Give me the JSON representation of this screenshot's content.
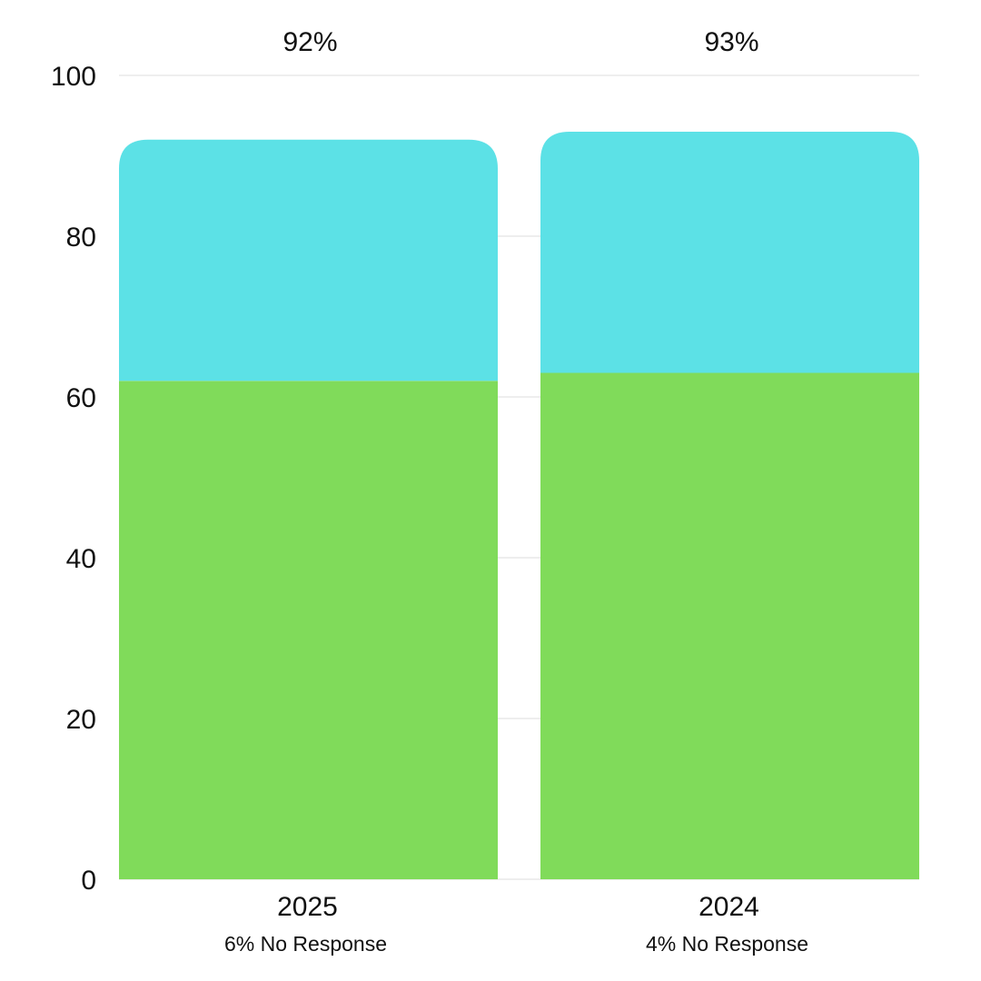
{
  "chart_data": {
    "type": "bar",
    "stacked": true,
    "categories": [
      "2025",
      "2024"
    ],
    "series": [
      {
        "values": [
          62,
          63
        ],
        "color": "#80db5a"
      },
      {
        "values": [
          30,
          30
        ],
        "color": "#5ce1e6"
      }
    ],
    "totals": [
      "92%",
      "93%"
    ],
    "notes": [
      "6% No Response",
      "4% No Response"
    ],
    "yticks": [
      "0",
      "20",
      "40",
      "60",
      "80",
      "100"
    ],
    "ylim": [
      0,
      100
    ],
    "grid": true,
    "legend": "none",
    "title": "",
    "xlabel": "",
    "ylabel": ""
  }
}
